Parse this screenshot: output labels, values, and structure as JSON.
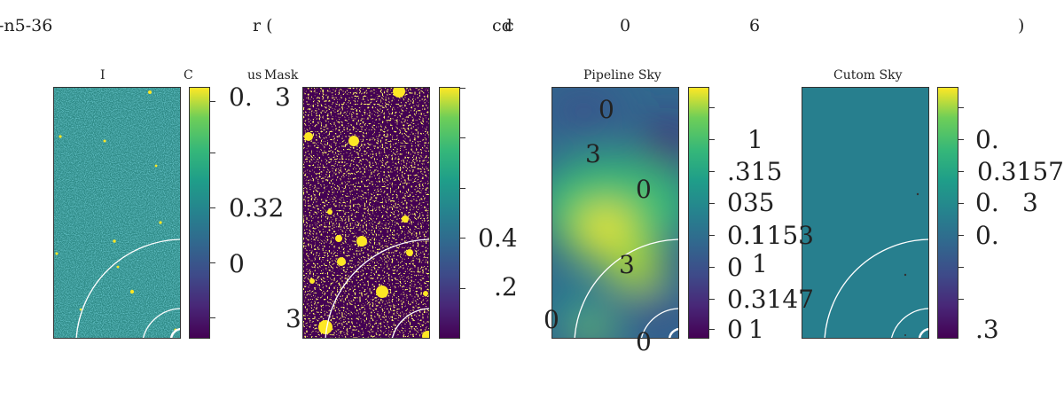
{
  "figure": {
    "title_fragments": [
      "-n5-36",
      "r (",
      "cd",
      "c",
      "0",
      "6",
      ")"
    ]
  },
  "chart_data": [
    {
      "type": "heatmap",
      "title_fragments": [
        "I",
        "C",
        "us"
      ],
      "colormap": "viridis",
      "colorbar_labels": [
        "0.",
        "0.32",
        "0",
        "3"
      ]
    },
    {
      "type": "heatmap",
      "title": "Mask",
      "colormap": "viridis",
      "colorbar_labels": [
        "0.4",
        ".2",
        "3"
      ]
    },
    {
      "type": "heatmap",
      "title": "Pipeline Sky",
      "colormap": "viridis",
      "overlay_labels": [
        "0",
        "3",
        "0",
        "3",
        "0",
        "0"
      ],
      "colorbar_labels": [
        "1",
        ".315",
        "035",
        "0.1153",
        "0",
        "1",
        "0.3147",
        "0",
        "1",
        "1"
      ]
    },
    {
      "type": "heatmap",
      "title": "Cutom Sky",
      "colormap": "viridis",
      "colorbar_labels": [
        "0.",
        "0.3157",
        "0.",
        "3",
        "0.",
        ".3"
      ]
    }
  ]
}
